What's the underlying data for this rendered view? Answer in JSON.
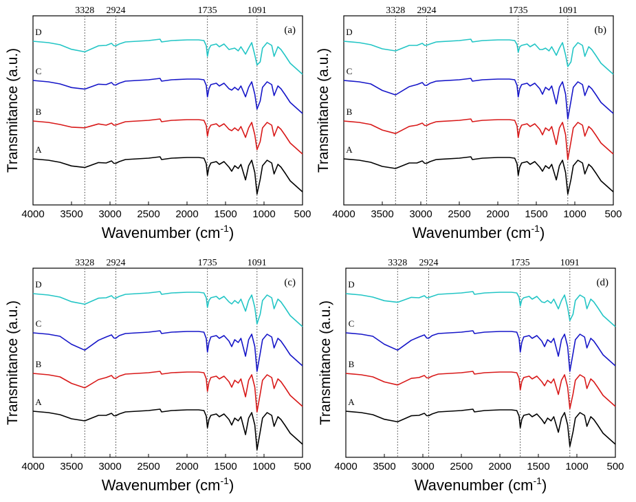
{
  "chart_data": [
    {
      "type": "line",
      "panel_label": "(a)",
      "xlabel": "Wavenumber (cm",
      "xlabel_sup": "-1",
      "xlabel_close": ")",
      "ylabel": "Transmitance (a.u.)",
      "xlim": [
        4000,
        500
      ],
      "x_ticks": [
        "4000",
        "3500",
        "3000",
        "2500",
        "2000",
        "1500",
        "1000",
        "500"
      ],
      "ref_lines": [
        {
          "label": "3328",
          "x": 3328
        },
        {
          "label": "2924",
          "x": 2924
        },
        {
          "label": "1735",
          "x": 1735
        },
        {
          "label": "1091",
          "x": 1091
        }
      ],
      "series": [
        {
          "name": "D",
          "color": "#22c5c5",
          "peaks": [
            0.55,
            0.25,
            0.55,
            0.55
          ]
        },
        {
          "name": "C",
          "color": "#1515c8",
          "peaks": [
            0.45,
            0.25,
            0.6,
            0.7
          ]
        },
        {
          "name": "B",
          "color": "#d81818",
          "peaks": [
            0.35,
            0.2,
            0.55,
            0.7
          ]
        },
        {
          "name": "A",
          "color": "#000000",
          "peaks": [
            0.45,
            0.25,
            0.6,
            0.9
          ]
        }
      ]
    },
    {
      "type": "line",
      "panel_label": "(b)",
      "xlabel": "Wavenumber (cm",
      "xlabel_sup": "-1",
      "xlabel_close": ")",
      "ylabel": "Transmitance (a.u.)",
      "xlim": [
        4000,
        500
      ],
      "x_ticks": [
        "4000",
        "3500",
        "3000",
        "2500",
        "2000",
        "1500",
        "1000",
        "500"
      ],
      "ref_lines": [
        {
          "label": "3328",
          "x": 3328
        },
        {
          "label": "2924",
          "x": 2924
        },
        {
          "label": "1735",
          "x": 1735
        },
        {
          "label": "1091",
          "x": 1091
        }
      ],
      "series": [
        {
          "name": "D",
          "color": "#22c5c5",
          "peaks": [
            0.5,
            0.2,
            0.4,
            0.6
          ]
        },
        {
          "name": "C",
          "color": "#1515c8",
          "peaks": [
            0.75,
            0.3,
            0.6,
            1.0
          ]
        },
        {
          "name": "B",
          "color": "#d81818",
          "peaks": [
            0.65,
            0.25,
            0.6,
            1.0
          ]
        },
        {
          "name": "A",
          "color": "#000000",
          "peaks": [
            0.5,
            0.25,
            0.6,
            0.9
          ]
        }
      ]
    },
    {
      "type": "line",
      "panel_label": "(c)",
      "xlabel": "Wavenumber (cm",
      "xlabel_sup": "-1",
      "xlabel_close": ")",
      "ylabel": "Transmitance (a.u.)",
      "xlim": [
        4000,
        500
      ],
      "x_ticks": [
        "4000",
        "3500",
        "3000",
        "2500",
        "2000",
        "1500",
        "1000",
        "500"
      ],
      "ref_lines": [
        {
          "label": "3328",
          "x": 3328
        },
        {
          "label": "2924",
          "x": 2924
        },
        {
          "label": "1735",
          "x": 1735
        },
        {
          "label": "1091",
          "x": 1091
        }
      ],
      "series": [
        {
          "name": "D",
          "color": "#22c5c5",
          "peaks": [
            0.55,
            0.25,
            0.5,
            0.75
          ]
        },
        {
          "name": "C",
          "color": "#1515c8",
          "peaks": [
            0.9,
            0.35,
            0.7,
            1.0
          ]
        },
        {
          "name": "B",
          "color": "#d81818",
          "peaks": [
            0.75,
            0.3,
            0.65,
            1.0
          ]
        },
        {
          "name": "A",
          "color": "#000000",
          "peaks": [
            0.5,
            0.25,
            0.6,
            1.0
          ]
        }
      ]
    },
    {
      "type": "line",
      "panel_label": "(d)",
      "xlabel": "Wavenumber (cm",
      "xlabel_sup": "-1",
      "xlabel_close": ")",
      "ylabel": "Transmitance (a.u.)",
      "xlim": [
        4000,
        500
      ],
      "x_ticks": [
        "4000",
        "3500",
        "3000",
        "2500",
        "2000",
        "1500",
        "1000",
        "500"
      ],
      "ref_lines": [
        {
          "label": "3328",
          "x": 3328
        },
        {
          "label": "2924",
          "x": 2924
        },
        {
          "label": "1735",
          "x": 1735
        },
        {
          "label": "1091",
          "x": 1091
        }
      ],
      "series": [
        {
          "name": "D",
          "color": "#22c5c5",
          "peaks": [
            0.45,
            0.2,
            0.45,
            0.65
          ]
        },
        {
          "name": "C",
          "color": "#1515c8",
          "peaks": [
            0.9,
            0.35,
            0.7,
            1.0
          ]
        },
        {
          "name": "B",
          "color": "#d81818",
          "peaks": [
            0.6,
            0.25,
            0.6,
            0.9
          ]
        },
        {
          "name": "A",
          "color": "#000000",
          "peaks": [
            0.55,
            0.25,
            0.6,
            0.9
          ]
        }
      ]
    }
  ]
}
